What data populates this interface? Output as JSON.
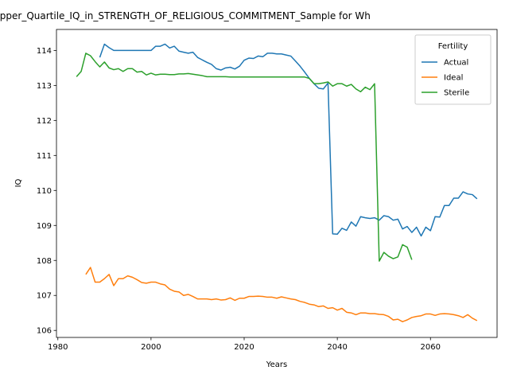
{
  "chart_data": {
    "type": "line",
    "title": "Upper_Quartile_IQ_in_STRENGTH_OF_RELIGIOUS_COMMITMENT_Sample for Wh",
    "xlabel": "Years",
    "ylabel": "IQ",
    "legend_title": "Fertility",
    "legend": "upper right",
    "grid": false,
    "xlim": [
      1979.7,
      2074.3
    ],
    "ylim": [
      105.8,
      114.6
    ],
    "xticks": [
      1980,
      2000,
      2020,
      2040,
      2060
    ],
    "yticks": [
      106,
      107,
      108,
      109,
      110,
      111,
      112,
      113,
      114
    ],
    "x": [
      1984,
      1985,
      1986,
      1987,
      1988,
      1989,
      1990,
      1991,
      1992,
      1993,
      1994,
      1995,
      1996,
      1997,
      1998,
      1999,
      2000,
      2001,
      2002,
      2003,
      2004,
      2005,
      2006,
      2007,
      2008,
      2009,
      2010,
      2011,
      2012,
      2013,
      2014,
      2015,
      2016,
      2017,
      2018,
      2019,
      2020,
      2021,
      2022,
      2023,
      2024,
      2025,
      2026,
      2027,
      2028,
      2029,
      2030,
      2031,
      2032,
      2033,
      2034,
      2035,
      2036,
      2037,
      2038,
      2039,
      2040,
      2041,
      2042,
      2043,
      2044,
      2045,
      2046,
      2047,
      2048,
      2049,
      2050,
      2051,
      2052,
      2053,
      2054,
      2055,
      2056,
      2057,
      2058,
      2059,
      2060,
      2061,
      2062,
      2063,
      2064,
      2065,
      2066,
      2067,
      2068,
      2069,
      2070
    ],
    "series": [
      {
        "name": "Actual",
        "color": "#1f77b4",
        "values": [
          null,
          null,
          null,
          null,
          null,
          113.8,
          114.18,
          114.08,
          114.0,
          114.0,
          114.0,
          114.0,
          114.0,
          114.0,
          114.0,
          114.0,
          114.0,
          114.12,
          114.12,
          114.18,
          114.07,
          114.12,
          113.98,
          113.95,
          113.92,
          113.95,
          113.8,
          113.73,
          113.66,
          113.6,
          113.48,
          113.44,
          113.5,
          113.52,
          113.47,
          113.55,
          113.72,
          113.78,
          113.77,
          113.84,
          113.82,
          113.92,
          113.92,
          113.9,
          113.9,
          113.87,
          113.84,
          113.7,
          113.55,
          113.38,
          113.2,
          113.05,
          112.92,
          112.9,
          113.07,
          108.76,
          108.75,
          108.92,
          108.86,
          109.1,
          108.98,
          109.25,
          109.22,
          109.2,
          109.22,
          109.15,
          109.28,
          109.25,
          109.15,
          109.18,
          108.9,
          108.97,
          108.8,
          108.95,
          108.7,
          108.95,
          108.85,
          109.25,
          109.24,
          109.57,
          109.57,
          109.78,
          109.78,
          109.96,
          109.9,
          109.88,
          109.76
        ]
      },
      {
        "name": "Ideal",
        "color": "#ff7f0e",
        "values": [
          null,
          null,
          107.6,
          107.8,
          107.38,
          107.38,
          107.48,
          107.6,
          107.28,
          107.48,
          107.48,
          107.56,
          107.52,
          107.45,
          107.37,
          107.35,
          107.38,
          107.38,
          107.33,
          107.3,
          107.18,
          107.12,
          107.1,
          107.0,
          107.03,
          106.97,
          106.9,
          106.9,
          106.9,
          106.88,
          106.9,
          106.87,
          106.88,
          106.93,
          106.86,
          106.92,
          106.92,
          106.97,
          106.97,
          106.98,
          106.97,
          106.95,
          106.95,
          106.92,
          106.96,
          106.93,
          106.9,
          106.88,
          106.83,
          106.8,
          106.75,
          106.73,
          106.68,
          106.7,
          106.63,
          106.65,
          106.58,
          106.63,
          106.52,
          106.5,
          106.45,
          106.5,
          106.5,
          106.48,
          106.48,
          106.46,
          106.45,
          106.4,
          106.3,
          106.32,
          106.25,
          106.3,
          106.37,
          106.4,
          106.42,
          106.47,
          106.47,
          106.43,
          106.47,
          106.48,
          106.47,
          106.45,
          106.42,
          106.37,
          106.45,
          106.35,
          106.28
        ]
      },
      {
        "name": "Sterile",
        "color": "#2ca02c",
        "values": [
          113.25,
          113.4,
          113.92,
          113.85,
          113.68,
          113.53,
          113.67,
          113.5,
          113.45,
          113.48,
          113.4,
          113.48,
          113.48,
          113.38,
          113.4,
          113.3,
          113.35,
          113.3,
          113.32,
          113.32,
          113.31,
          113.31,
          113.33,
          113.33,
          113.34,
          113.32,
          113.3,
          113.28,
          113.25,
          113.25,
          113.25,
          113.25,
          113.25,
          113.24,
          113.24,
          113.24,
          113.24,
          113.24,
          113.24,
          113.24,
          113.24,
          113.24,
          113.24,
          113.24,
          113.24,
          113.24,
          113.24,
          113.24,
          113.24,
          113.24,
          113.2,
          113.05,
          113.05,
          113.07,
          113.1,
          112.98,
          113.05,
          113.05,
          112.98,
          113.03,
          112.9,
          112.82,
          112.95,
          112.88,
          113.05,
          107.98,
          108.23,
          108.12,
          108.05,
          108.1,
          108.45,
          108.38,
          108.02,
          null,
          null,
          null,
          null,
          null,
          null,
          null,
          null,
          null,
          null,
          null,
          null,
          null,
          null
        ]
      }
    ]
  }
}
